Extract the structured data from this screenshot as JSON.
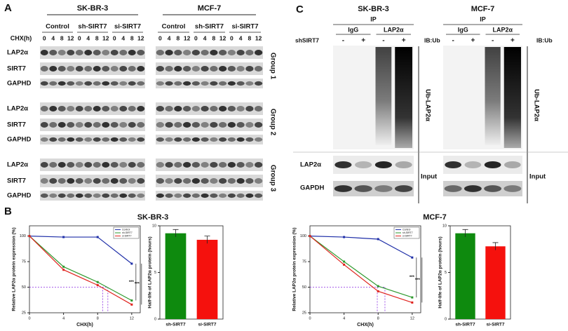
{
  "panel_a": {
    "label": "A",
    "cell_lines": [
      "SK-BR-3",
      "MCF-7"
    ],
    "conditions": [
      "Control",
      "sh-SIRT7",
      "si-SIRT7"
    ],
    "time_label": "CHX(h)",
    "times": [
      "0",
      "4",
      "8",
      "12"
    ],
    "groups": [
      {
        "name": "Group 1",
        "rows": [
          "LAP2α",
          "SIRT7",
          "GAPHD"
        ]
      },
      {
        "name": "Group 2",
        "rows": [
          "LAP2α",
          "SIRT7",
          "GAPHD"
        ]
      },
      {
        "name": "Group 3",
        "rows": [
          "LAP2α",
          "SIRT7",
          "GAPHD"
        ]
      }
    ]
  },
  "panel_b": {
    "label": "B"
  },
  "panel_c": {
    "label": "C",
    "cell_lines": [
      "SK-BR-3",
      "MCF-7"
    ],
    "ip": "IP",
    "ip_groups": [
      "IgG",
      "LAP2α"
    ],
    "treatment": "shSIRT7",
    "signs": [
      "-",
      "+",
      "-",
      "+"
    ],
    "ib": "IB:Ub",
    "smear_label": "Ub-LAP2α",
    "input": "Input",
    "input_rows": [
      "LAP2α",
      "GAPDH"
    ]
  },
  "chart_data": [
    {
      "type": "line",
      "title": "SK-BR-3",
      "x_label": "CHX(h)",
      "y_label": "Relative LAP2α protein expression  (%)",
      "x": [
        0,
        4,
        8,
        12
      ],
      "xlim": [
        0,
        13
      ],
      "xticks": [
        0,
        4,
        8,
        12
      ],
      "ylim": [
        25,
        110
      ],
      "yticks": [
        25,
        50,
        75,
        100
      ],
      "series": [
        {
          "name": "Control",
          "color": "#1f2fa8",
          "values": [
            100,
            99,
            99,
            73
          ]
        },
        {
          "name": "sh-SIRT7",
          "color": "#2e9a2e",
          "values": [
            100,
            70,
            55,
            37
          ]
        },
        {
          "name": "si-SIRT7",
          "color": "#e0241f",
          "values": [
            100,
            67,
            52,
            33
          ]
        }
      ],
      "legend": "upper right",
      "annotations": [
        "***",
        "***"
      ],
      "hline": 50,
      "vlines": [
        8.6,
        9.2
      ]
    },
    {
      "type": "bar",
      "y_label": "Half-life of LAP2α protein (hours)",
      "categories": [
        "sh-SIRT7",
        "si-SIRT7"
      ],
      "values": [
        9.2,
        8.5
      ],
      "errors": [
        0.4,
        0.4
      ],
      "colors": [
        "#0e8a0e",
        "#f5110d"
      ],
      "ylim": [
        0,
        10
      ],
      "yticks": [
        0,
        5,
        10
      ]
    },
    {
      "type": "line",
      "title": "MCF-7",
      "x_label": "CHX(h)",
      "y_label": "Relative LAP2α protein expression  (%)",
      "x": [
        0,
        4,
        8,
        12
      ],
      "xlim": [
        0,
        13
      ],
      "xticks": [
        0,
        4,
        8,
        12
      ],
      "ylim": [
        25,
        110
      ],
      "yticks": [
        25,
        50,
        75,
        100
      ],
      "series": [
        {
          "name": "Control",
          "color": "#1f2fa8",
          "values": [
            100,
            99,
            97,
            79
          ]
        },
        {
          "name": "sh-SIRT7",
          "color": "#2e9a2e",
          "values": [
            100,
            75,
            51,
            40
          ]
        },
        {
          "name": "si-SIRT7",
          "color": "#e0241f",
          "values": [
            100,
            72,
            46,
            35
          ]
        }
      ],
      "legend": "upper right",
      "annotations": [
        "***",
        "***"
      ],
      "hline": 50,
      "vlines": [
        7.9,
        8.8
      ]
    },
    {
      "type": "bar",
      "y_label": "Half-life of LAP2α protein (hours)",
      "categories": [
        "sh-SIRT7",
        "si-SIRT7"
      ],
      "values": [
        9.2,
        7.8
      ],
      "errors": [
        0.4,
        0.4
      ],
      "colors": [
        "#0e8a0e",
        "#f5110d"
      ],
      "ylim": [
        0,
        10
      ],
      "yticks": [
        0,
        5,
        10
      ]
    }
  ]
}
